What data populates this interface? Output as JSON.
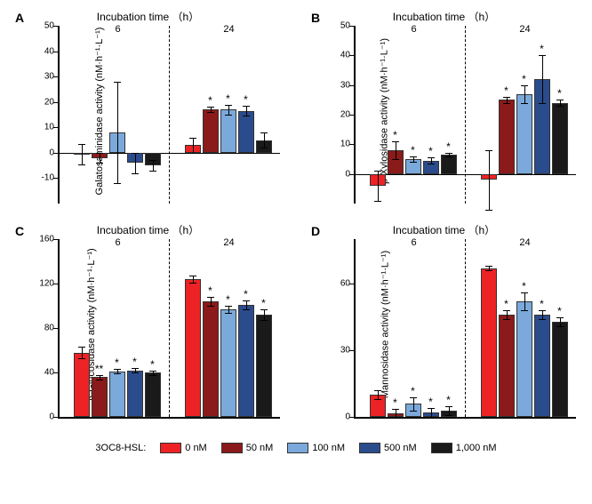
{
  "legend": {
    "title": "3OC8-HSL:",
    "items": [
      {
        "label": "0 nM",
        "color": "#ed2224"
      },
      {
        "label": "50 nM",
        "color": "#8b1a1a"
      },
      {
        "label": "100 nM",
        "color": "#7ba9db"
      },
      {
        "label": "500 nM",
        "color": "#2b4c8c"
      },
      {
        "label": "1,000 nM",
        "color": "#1a1a1a"
      }
    ]
  },
  "panels": [
    {
      "id": "A",
      "title": "Incubation time （h）",
      "ylabel": "Galatosaminidase activity (nM·h⁻¹·L⁻¹)",
      "ylim": [
        -20,
        50
      ],
      "yticks": [
        -10,
        0,
        10,
        20,
        30,
        40,
        50
      ],
      "groups": [
        "6",
        "24"
      ],
      "series_colors": [
        "#ed2224",
        "#8b1a1a",
        "#7ba9db",
        "#2b4c8c",
        "#1a1a1a"
      ],
      "data": [
        [
          {
            "v": -0.5,
            "el": 4,
            "eh": 4
          },
          {
            "v": -2,
            "el": 2,
            "eh": 2
          },
          {
            "v": 8,
            "el": 20,
            "eh": 20
          },
          {
            "v": -4,
            "el": 4,
            "eh": 4
          },
          {
            "v": -5,
            "el": 2,
            "eh": 2
          }
        ],
        [
          {
            "v": 3,
            "el": 3,
            "eh": 3
          },
          {
            "v": 17,
            "el": 1,
            "eh": 1,
            "sig": "*"
          },
          {
            "v": 17,
            "el": 2,
            "eh": 2,
            "sig": "*"
          },
          {
            "v": 16.5,
            "el": 2,
            "eh": 2,
            "sig": "*"
          },
          {
            "v": 5,
            "el": 3,
            "eh": 3
          }
        ]
      ]
    },
    {
      "id": "B",
      "title": "Incubation time （h）",
      "ylabel": "β-Xylosidase activity (nM·h⁻¹·L⁻¹)",
      "ylim": [
        -10,
        50
      ],
      "yticks": [
        0,
        10,
        20,
        30,
        40,
        50
      ],
      "groups": [
        "6",
        "24"
      ],
      "series_colors": [
        "#ed2224",
        "#8b1a1a",
        "#7ba9db",
        "#2b4c8c",
        "#1a1a1a"
      ],
      "data": [
        [
          {
            "v": -4,
            "el": 5,
            "eh": 5
          },
          {
            "v": 8,
            "el": 3,
            "eh": 3,
            "sig": "*"
          },
          {
            "v": 5,
            "el": 1,
            "eh": 1,
            "sig": "*"
          },
          {
            "v": 4.5,
            "el": 1,
            "eh": 1,
            "sig": "*"
          },
          {
            "v": 6.5,
            "el": 0.5,
            "eh": 0.5,
            "sig": "*"
          }
        ],
        [
          {
            "v": -2,
            "el": 10,
            "eh": 10
          },
          {
            "v": 25,
            "el": 1,
            "eh": 1,
            "sig": "*"
          },
          {
            "v": 27,
            "el": 3,
            "eh": 3,
            "sig": "*"
          },
          {
            "v": 32,
            "el": 8,
            "eh": 8,
            "sig": "*"
          },
          {
            "v": 24,
            "el": 1,
            "eh": 1,
            "sig": "*"
          }
        ]
      ]
    },
    {
      "id": "C",
      "title": "Incubation time （h）",
      "ylabel": "β-Glucosidase activity (nM·h⁻¹·L⁻¹)",
      "ylim": [
        0,
        160
      ],
      "yticks": [
        0,
        40,
        80,
        120,
        160
      ],
      "groups": [
        "6",
        "24"
      ],
      "series_colors": [
        "#ed2224",
        "#8b1a1a",
        "#7ba9db",
        "#2b4c8c",
        "#1a1a1a"
      ],
      "data": [
        [
          {
            "v": 58,
            "el": 5,
            "eh": 5
          },
          {
            "v": 36,
            "el": 2,
            "eh": 2,
            "sig": "**"
          },
          {
            "v": 41,
            "el": 2,
            "eh": 2,
            "sig": "*"
          },
          {
            "v": 42,
            "el": 2,
            "eh": 2,
            "sig": "*"
          },
          {
            "v": 40,
            "el": 2,
            "eh": 2,
            "sig": "*"
          }
        ],
        [
          {
            "v": 124,
            "el": 3,
            "eh": 3
          },
          {
            "v": 104,
            "el": 4,
            "eh": 4,
            "sig": "*"
          },
          {
            "v": 97,
            "el": 3,
            "eh": 3,
            "sig": "*"
          },
          {
            "v": 101,
            "el": 4,
            "eh": 4,
            "sig": "*"
          },
          {
            "v": 92,
            "el": 5,
            "eh": 5,
            "sig": "*"
          }
        ]
      ]
    },
    {
      "id": "D",
      "title": "Incubation time （h）",
      "ylabel": "Mannosidase activity (nM·h⁻¹·L⁻¹)",
      "ylim": [
        0,
        80
      ],
      "yticks": [
        0,
        30,
        60
      ],
      "groups": [
        "6",
        "24"
      ],
      "series_colors": [
        "#ed2224",
        "#8b1a1a",
        "#7ba9db",
        "#2b4c8c",
        "#1a1a1a"
      ],
      "data": [
        [
          {
            "v": 10,
            "el": 2,
            "eh": 2
          },
          {
            "v": 1.5,
            "el": 2,
            "eh": 2,
            "sig": "*"
          },
          {
            "v": 6,
            "el": 3,
            "eh": 3,
            "sig": "*"
          },
          {
            "v": 2,
            "el": 2,
            "eh": 2,
            "sig": "*"
          },
          {
            "v": 3,
            "el": 2,
            "eh": 2,
            "sig": "*"
          }
        ],
        [
          {
            "v": 67,
            "el": 1,
            "eh": 1
          },
          {
            "v": 46,
            "el": 2,
            "eh": 2,
            "sig": "*"
          },
          {
            "v": 52,
            "el": 4,
            "eh": 4,
            "sig": "*"
          },
          {
            "v": 46,
            "el": 2,
            "eh": 2,
            "sig": "*"
          },
          {
            "v": 43,
            "el": 2,
            "eh": 2,
            "sig": "*"
          }
        ]
      ]
    }
  ]
}
